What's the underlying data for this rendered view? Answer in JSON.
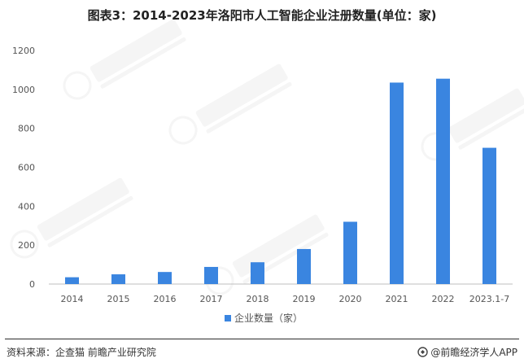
{
  "chart_data": {
    "type": "bar",
    "title": "图表3：2014-2023年洛阳市人工智能企业注册数量(单位：家)",
    "categories": [
      "2014",
      "2015",
      "2016",
      "2017",
      "2018",
      "2019",
      "2020",
      "2021",
      "2022",
      "2023.1-7"
    ],
    "series": [
      {
        "name": "企业数量（家）",
        "values": [
          35,
          50,
          62,
          88,
          112,
          180,
          320,
          1035,
          1055,
          700
        ]
      }
    ],
    "xlabel": "",
    "ylabel": "",
    "ylim": [
      0,
      1200
    ],
    "yticks": [
      "0",
      "200",
      "400",
      "600",
      "800",
      "1000",
      "1200"
    ],
    "grid": false,
    "legend_position": "bottom",
    "colors": {
      "bar": "#3a85e0",
      "axis": "#bfbfbf",
      "text": "#555555"
    }
  },
  "footer": {
    "source": "资料来源：企查猫 前瞻产业研究院",
    "brand": "@前瞻经济学人APP",
    "brand_icon": "qianzhan-logo-icon"
  }
}
